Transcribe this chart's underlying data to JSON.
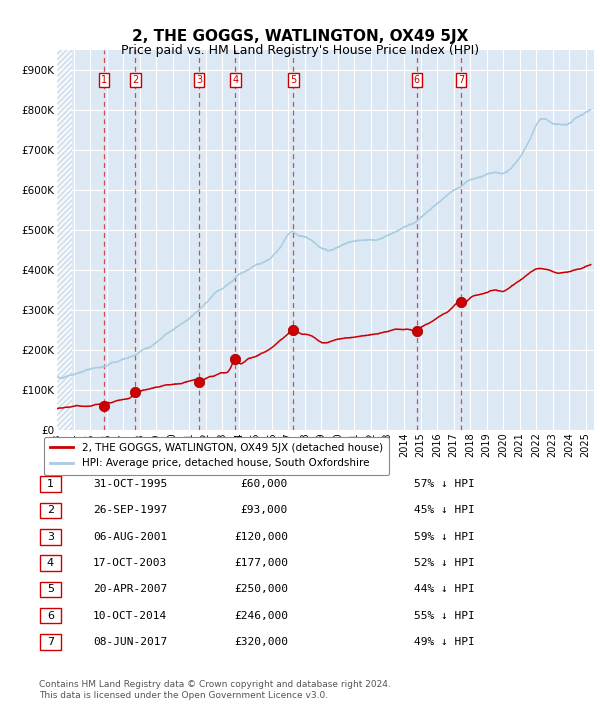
{
  "title": "2, THE GOGGS, WATLINGTON, OX49 5JX",
  "subtitle": "Price paid vs. HM Land Registry's House Price Index (HPI)",
  "title_fontsize": 11,
  "subtitle_fontsize": 9,
  "hpi_label": "HPI: Average price, detached house, South Oxfordshire",
  "price_label": "2, THE GOGGS, WATLINGTON, OX49 5JX (detached house)",
  "xlim": [
    1993.0,
    2025.5
  ],
  "ylim": [
    0,
    950000
  ],
  "yticks": [
    0,
    100000,
    200000,
    300000,
    400000,
    500000,
    600000,
    700000,
    800000,
    900000
  ],
  "ytick_labels": [
    "£0",
    "£100K",
    "£200K",
    "£300K",
    "£400K",
    "£500K",
    "£600K",
    "£700K",
    "£800K",
    "£900K"
  ],
  "xticks": [
    1993,
    1994,
    1995,
    1996,
    1997,
    1998,
    1999,
    2000,
    2001,
    2002,
    2003,
    2004,
    2005,
    2006,
    2007,
    2008,
    2009,
    2010,
    2011,
    2012,
    2013,
    2014,
    2015,
    2016,
    2017,
    2018,
    2019,
    2020,
    2021,
    2022,
    2023,
    2024,
    2025
  ],
  "hpi_color": "#a8cce0",
  "price_color": "#cc0000",
  "dashed_line_color": "#cc3333",
  "plot_bg_color": "#dce9f5",
  "grid_color": "#ffffff",
  "sales": [
    {
      "num": 1,
      "date": "31-OCT-1995",
      "year": 1995.83,
      "price": 60000,
      "pct": "57%",
      "dir": "↓"
    },
    {
      "num": 2,
      "date": "26-SEP-1997",
      "year": 1997.74,
      "price": 93000,
      "pct": "45%",
      "dir": "↓"
    },
    {
      "num": 3,
      "date": "06-AUG-2001",
      "year": 2001.6,
      "price": 120000,
      "pct": "59%",
      "dir": "↓"
    },
    {
      "num": 4,
      "date": "17-OCT-2003",
      "year": 2003.8,
      "price": 177000,
      "pct": "52%",
      "dir": "↓"
    },
    {
      "num": 5,
      "date": "20-APR-2007",
      "year": 2007.3,
      "price": 250000,
      "pct": "44%",
      "dir": "↓"
    },
    {
      "num": 6,
      "date": "10-OCT-2014",
      "year": 2014.78,
      "price": 246000,
      "pct": "55%",
      "dir": "↓"
    },
    {
      "num": 7,
      "date": "08-JUN-2017",
      "year": 2017.44,
      "price": 320000,
      "pct": "49%",
      "dir": "↓"
    }
  ],
  "footer1": "Contains HM Land Registry data © Crown copyright and database right 2024.",
  "footer2": "This data is licensed under the Open Government Licence v3.0.",
  "hpi_control_years": [
    1993.0,
    1994.0,
    1995.0,
    1996.0,
    1997.0,
    1997.5,
    1998.0,
    1999.0,
    2000.0,
    2001.0,
    2001.5,
    2002.0,
    2002.5,
    2003.0,
    2003.5,
    2004.0,
    2004.5,
    2005.0,
    2005.5,
    2006.0,
    2006.5,
    2007.0,
    2007.3,
    2007.5,
    2008.0,
    2008.5,
    2009.0,
    2009.5,
    2010.0,
    2010.5,
    2011.0,
    2011.5,
    2012.0,
    2012.5,
    2013.0,
    2013.5,
    2014.0,
    2014.5,
    2015.0,
    2015.5,
    2016.0,
    2016.5,
    2017.0,
    2017.5,
    2018.0,
    2018.5,
    2019.0,
    2019.5,
    2020.0,
    2020.5,
    2021.0,
    2021.5,
    2022.0,
    2022.5,
    2023.0,
    2023.5,
    2024.0,
    2024.5,
    2025.3
  ],
  "hpi_control_vals": [
    130000,
    138000,
    150000,
    160000,
    175000,
    182000,
    195000,
    218000,
    250000,
    278000,
    295000,
    315000,
    335000,
    352000,
    368000,
    385000,
    398000,
    408000,
    418000,
    432000,
    455000,
    488000,
    495000,
    490000,
    480000,
    468000,
    452000,
    448000,
    458000,
    464000,
    470000,
    472000,
    474000,
    478000,
    485000,
    495000,
    505000,
    515000,
    530000,
    548000,
    565000,
    582000,
    598000,
    610000,
    622000,
    632000,
    638000,
    642000,
    640000,
    655000,
    680000,
    715000,
    760000,
    775000,
    768000,
    762000,
    768000,
    780000,
    800000
  ],
  "red_control_years": [
    1993.0,
    1994.0,
    1994.5,
    1995.0,
    1995.5,
    1996.0,
    1996.5,
    1997.0,
    1997.5,
    1997.74,
    1998.0,
    1998.5,
    1999.0,
    2000.0,
    2000.5,
    2001.0,
    2001.5,
    2001.6,
    2002.0,
    2002.5,
    2003.0,
    2003.5,
    2003.8,
    2004.0,
    2004.5,
    2005.0,
    2005.5,
    2006.0,
    2006.5,
    2007.0,
    2007.3,
    2007.5,
    2008.0,
    2008.5,
    2009.0,
    2009.5,
    2010.0,
    2010.5,
    2011.0,
    2011.5,
    2012.0,
    2012.5,
    2013.0,
    2013.5,
    2014.0,
    2014.5,
    2014.78,
    2015.0,
    2015.5,
    2016.0,
    2016.5,
    2017.0,
    2017.44,
    2017.5,
    2018.0,
    2018.5,
    2019.0,
    2019.5,
    2020.0,
    2020.5,
    2021.0,
    2021.5,
    2022.0,
    2022.5,
    2023.0,
    2023.5,
    2024.0,
    2024.5,
    2025.3
  ],
  "red_control_vals": [
    53000,
    57000,
    58500,
    60000,
    63000,
    66000,
    70000,
    75000,
    82000,
    93000,
    96000,
    100000,
    106000,
    112000,
    116000,
    120000,
    122000,
    120000,
    128000,
    135000,
    142000,
    152000,
    177000,
    168000,
    175000,
    182000,
    192000,
    205000,
    222000,
    240000,
    250000,
    245000,
    238000,
    232000,
    218000,
    220000,
    225000,
    228000,
    232000,
    235000,
    238000,
    242000,
    246000,
    250000,
    250000,
    248000,
    246000,
    254000,
    265000,
    278000,
    292000,
    308000,
    320000,
    318000,
    328000,
    338000,
    342000,
    348000,
    345000,
    358000,
    372000,
    388000,
    400000,
    402000,
    395000,
    390000,
    395000,
    400000,
    415000
  ]
}
